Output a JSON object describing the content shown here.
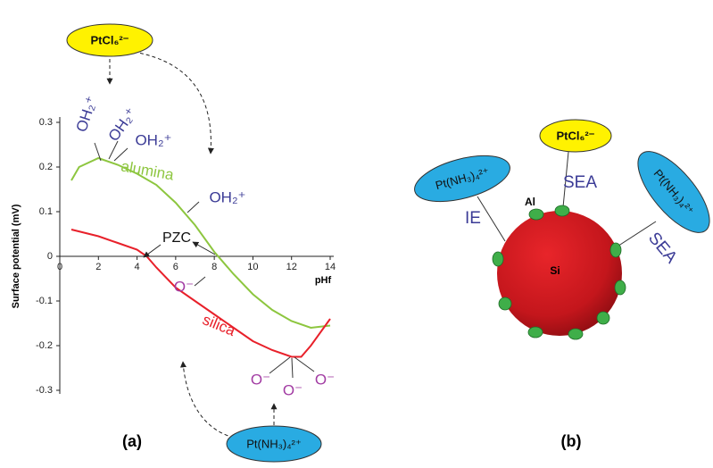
{
  "chart_data": {
    "type": "line",
    "xlabel": "pHf",
    "ylabel": "Surface potential (mV)",
    "panel_label": "(a)",
    "xlim": [
      0,
      14
    ],
    "ylim": [
      -0.3,
      0.3
    ],
    "xticks": [
      0,
      2,
      4,
      6,
      8,
      10,
      12,
      14
    ],
    "yticks": [
      0.3,
      0.2,
      0.1,
      0,
      -0.1,
      -0.2,
      -0.3
    ],
    "series": [
      {
        "name": "alumina",
        "color": "#8dc63f",
        "x": [
          0.6,
          1,
          2,
          3,
          4,
          5,
          6,
          7,
          8,
          9,
          10,
          11,
          12,
          13,
          14
        ],
        "values": [
          0.17,
          0.2,
          0.22,
          0.205,
          0.185,
          0.16,
          0.12,
          0.07,
          0.01,
          -0.04,
          -0.085,
          -0.12,
          -0.145,
          -0.16,
          -0.155
        ]
      },
      {
        "name": "silica",
        "color": "#e8202a",
        "x": [
          0.6,
          2,
          3,
          4,
          4.5,
          5,
          6,
          7,
          8,
          9,
          10,
          11,
          12,
          12.5,
          13,
          14
        ],
        "values": [
          0.06,
          0.045,
          0.03,
          0.015,
          0.0,
          -0.025,
          -0.07,
          -0.1,
          -0.13,
          -0.16,
          -0.19,
          -0.21,
          -0.225,
          -0.225,
          -0.2,
          -0.14
        ]
      }
    ],
    "annotations": [
      "OH₂⁺",
      "OH₂⁺",
      "OH₂⁺",
      "OH₂⁺",
      "PZC",
      "O⁻",
      "O⁻",
      "O⁻",
      "O⁻",
      "PtCl₆²⁻",
      "Pt(NH₃)₄²⁺"
    ]
  },
  "panel_b": {
    "label": "(b)",
    "sphere_label": "Si",
    "site_label": "Al",
    "ions": [
      {
        "text": "PtCl₆²⁻",
        "method": "SEA"
      },
      {
        "text": "Pt(NH₃)₄²⁺",
        "method": "IE"
      },
      {
        "text": "Pt(NH₃)₄²⁺",
        "method": "SEA"
      }
    ]
  }
}
